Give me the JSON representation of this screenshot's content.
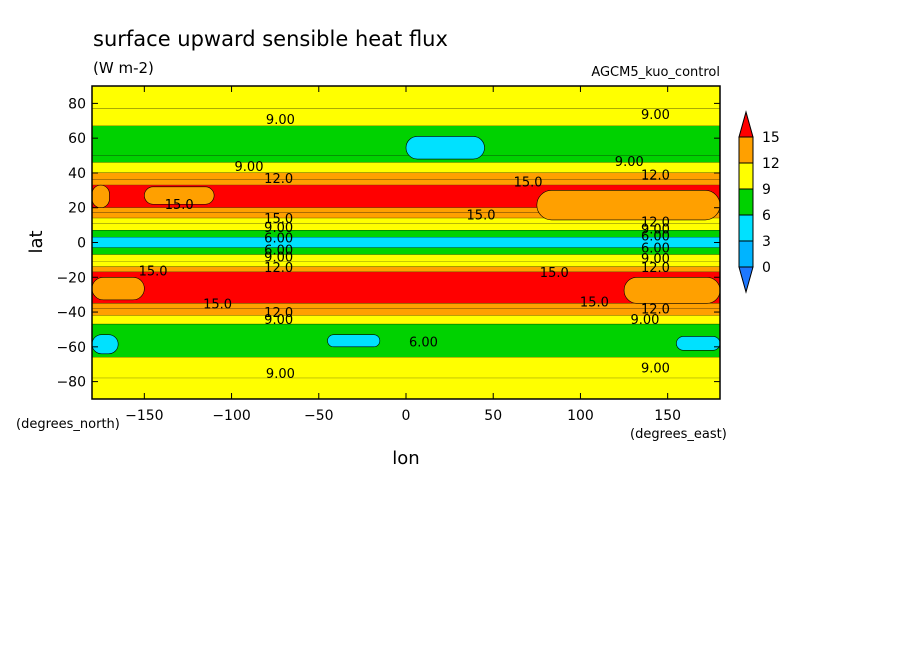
{
  "chart_data": {
    "type": "heatmap",
    "title": "surface upward sensible heat flux",
    "units": "(W m-2)",
    "dataset": "AGCM5_kuo_control",
    "xlabel": "lon",
    "ylabel": "lat",
    "x_units": "(degrees_east)",
    "y_units": "(degrees_north)",
    "xlim": [
      -180,
      180
    ],
    "ylim": [
      -90,
      90
    ],
    "x_ticks": [
      -150,
      -100,
      -50,
      0,
      50,
      100,
      150
    ],
    "y_ticks": [
      80,
      60,
      40,
      20,
      0,
      -20,
      -40,
      -60,
      -80
    ],
    "colorbar": {
      "levels": [
        0,
        3,
        6,
        9,
        12,
        15
      ],
      "tick_labels": [
        "15",
        "12",
        "9",
        "6",
        "3",
        "0"
      ],
      "colors": {
        "below_0": "#1e78ff",
        "0_3": "#00b4ff",
        "3_6": "#00e1ff",
        "6_9": "#00d200",
        "9_12": "#ffff00",
        "12_15": "#ffa000",
        "above_15": "#ff0000"
      }
    },
    "latitude_bands": [
      {
        "lat_from": 90,
        "lat_to": 77,
        "value": 10.5
      },
      {
        "lat_from": 77,
        "lat_to": 67,
        "value": 9.5
      },
      {
        "lat_from": 67,
        "lat_to": 50,
        "value": 7.5
      },
      {
        "lat_from": 50,
        "lat_to": 46,
        "value": 8.0
      },
      {
        "lat_from": 46,
        "lat_to": 40,
        "value": 10.0
      },
      {
        "lat_from": 40,
        "lat_to": 36,
        "value": 12.5
      },
      {
        "lat_from": 36,
        "lat_to": 33,
        "value": 14.0
      },
      {
        "lat_from": 33,
        "lat_to": 20,
        "value": 16.0
      },
      {
        "lat_from": 20,
        "lat_to": 17,
        "value": 14.0
      },
      {
        "lat_from": 17,
        "lat_to": 14,
        "value": 12.5
      },
      {
        "lat_from": 14,
        "lat_to": 11,
        "value": 11.0
      },
      {
        "lat_from": 11,
        "lat_to": 7,
        "value": 9.5
      },
      {
        "lat_from": 7,
        "lat_to": 3,
        "value": 7.5
      },
      {
        "lat_from": 3,
        "lat_to": -3,
        "value": 4.5
      },
      {
        "lat_from": -3,
        "lat_to": -7,
        "value": 7.5
      },
      {
        "lat_from": -7,
        "lat_to": -11,
        "value": 9.5
      },
      {
        "lat_from": -11,
        "lat_to": -14,
        "value": 11.0
      },
      {
        "lat_from": -14,
        "lat_to": -17,
        "value": 12.5
      },
      {
        "lat_from": -17,
        "lat_to": -35,
        "value": 16.0
      },
      {
        "lat_from": -35,
        "lat_to": -38,
        "value": 14.0
      },
      {
        "lat_from": -38,
        "lat_to": -42,
        "value": 12.5
      },
      {
        "lat_from": -42,
        "lat_to": -47,
        "value": 10.0
      },
      {
        "lat_from": -47,
        "lat_to": -66,
        "value": 7.5
      },
      {
        "lat_from": -66,
        "lat_to": -78,
        "value": 9.0
      },
      {
        "lat_from": -78,
        "lat_to": -90,
        "value": 10.5
      }
    ],
    "regional_patches": [
      {
        "lon_min": 0,
        "lon_max": 45,
        "lat_min": 48,
        "lat_max": 61,
        "value": 4.5
      },
      {
        "lon_min": -180,
        "lon_max": -165,
        "lat_min": -64,
        "lat_max": -53,
        "value": 4.5
      },
      {
        "lon_min": -45,
        "lon_max": -15,
        "lat_min": -60,
        "lat_max": -53,
        "value": 4.5
      },
      {
        "lon_min": 155,
        "lon_max": 180,
        "lat_min": -62,
        "lat_max": -54,
        "value": 4.5
      },
      {
        "lon_min": -180,
        "lon_max": -170,
        "lat_min": 20,
        "lat_max": 33,
        "value": 13.5
      },
      {
        "lon_min": -150,
        "lon_max": -110,
        "lat_min": 22,
        "lat_max": 32,
        "value": 13.5
      },
      {
        "lon_min": 75,
        "lon_max": 180,
        "lat_min": 13,
        "lat_max": 30,
        "value": 13.5
      },
      {
        "lon_min": -180,
        "lon_max": -150,
        "lat_min": -33,
        "lat_max": -20,
        "value": 13.5
      },
      {
        "lon_min": 125,
        "lon_max": 180,
        "lat_min": -35,
        "lat_max": -20,
        "value": 13.5
      }
    ],
    "contour_labels": [
      {
        "text": "9.00",
        "lon": -72,
        "lat": 71
      },
      {
        "text": "9.00",
        "lon": 143,
        "lat": 74
      },
      {
        "text": "9.00",
        "lon": -90,
        "lat": 44
      },
      {
        "text": "9.00",
        "lon": 128,
        "lat": 47
      },
      {
        "text": "12.0",
        "lon": -73,
        "lat": 37
      },
      {
        "text": "12.0",
        "lon": 143,
        "lat": 39
      },
      {
        "text": "15.0",
        "lon": 70,
        "lat": 35
      },
      {
        "text": "15.0",
        "lon": -130,
        "lat": 22
      },
      {
        "text": "15.0",
        "lon": 43,
        "lat": 16
      },
      {
        "text": "15.0",
        "lon": -73,
        "lat": 14
      },
      {
        "text": "12.0",
        "lon": 143,
        "lat": 12
      },
      {
        "text": "9.00",
        "lon": -73,
        "lat": 9
      },
      {
        "text": "9.00",
        "lon": 143,
        "lat": 8
      },
      {
        "text": "6.00",
        "lon": -73,
        "lat": 3
      },
      {
        "text": "6.00",
        "lon": 143,
        "lat": 4
      },
      {
        "text": "6.00",
        "lon": -73,
        "lat": -4
      },
      {
        "text": "6.00",
        "lon": 143,
        "lat": -3
      },
      {
        "text": "9.00",
        "lon": -73,
        "lat": -8
      },
      {
        "text": "9.00",
        "lon": 143,
        "lat": -9
      },
      {
        "text": "12.0",
        "lon": -73,
        "lat": -14
      },
      {
        "text": "12.0",
        "lon": 143,
        "lat": -14
      },
      {
        "text": "15.0",
        "lon": -145,
        "lat": -16
      },
      {
        "text": "15.0",
        "lon": 85,
        "lat": -17
      },
      {
        "text": "15.0",
        "lon": -108,
        "lat": -35
      },
      {
        "text": "15.0",
        "lon": 108,
        "lat": -34
      },
      {
        "text": "12.0",
        "lon": -73,
        "lat": -40
      },
      {
        "text": "12.0",
        "lon": 143,
        "lat": -38
      },
      {
        "text": "9.00",
        "lon": -73,
        "lat": -44
      },
      {
        "text": "9.00",
        "lon": 137,
        "lat": -44
      },
      {
        "text": "6.00",
        "lon": 10,
        "lat": -57
      },
      {
        "text": "9.00",
        "lon": -72,
        "lat": -75
      },
      {
        "text": "9.00",
        "lon": 143,
        "lat": -72
      }
    ]
  }
}
